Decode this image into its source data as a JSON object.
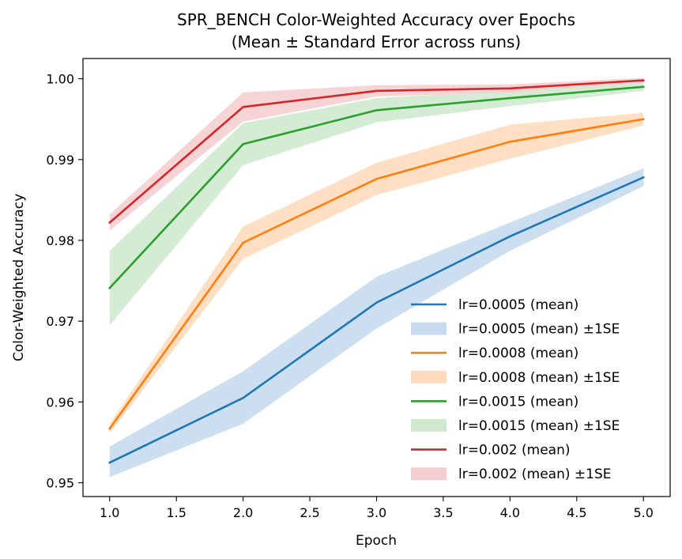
{
  "chart_data": {
    "type": "line",
    "title": "SPR_BENCH Color-Weighted Accuracy over Epochs",
    "subtitle": "(Mean ± Standard Error across runs)",
    "xlabel": "Epoch",
    "ylabel": "Color-Weighted Accuracy",
    "xlim": [
      0.8,
      5.2
    ],
    "ylim": [
      0.9483,
      1.0025
    ],
    "xticks": [
      1.0,
      1.5,
      2.0,
      2.5,
      3.0,
      3.5,
      4.0,
      4.5,
      5.0
    ],
    "xtick_labels": [
      "1.0",
      "1.5",
      "2.0",
      "2.5",
      "3.0",
      "3.5",
      "4.0",
      "4.5",
      "5.0"
    ],
    "yticks": [
      0.95,
      0.96,
      0.97,
      0.98,
      0.99,
      1.0
    ],
    "ytick_labels": [
      "0.95",
      "0.96",
      "0.97",
      "0.98",
      "0.99",
      "1.00"
    ],
    "grid": false,
    "legend_position": "lower-right",
    "x": [
      1,
      2,
      3,
      4,
      5
    ],
    "series": [
      {
        "name": "lr=0.0005 (mean)",
        "band_name": "lr=0.0005 (mean) ±1SE",
        "color": "#1f77b4",
        "band_color": "#c6dbef",
        "values": [
          0.9525,
          0.9605,
          0.9723,
          0.9805,
          0.9878
        ],
        "lower": [
          0.9507,
          0.9573,
          0.9691,
          0.9787,
          0.9867
        ],
        "upper": [
          0.9545,
          0.9638,
          0.9755,
          0.9822,
          0.9889
        ]
      },
      {
        "name": "lr=0.0008 (mean)",
        "band_name": "lr=0.0008 (mean) ±1SE",
        "color": "#ff7f0e",
        "band_color": "#ffdbbd",
        "values": [
          0.9567,
          0.9797,
          0.9876,
          0.9922,
          0.995
        ],
        "lower": [
          0.9561,
          0.9777,
          0.9856,
          0.9901,
          0.9942
        ],
        "upper": [
          0.9573,
          0.9817,
          0.9896,
          0.9943,
          0.9958
        ]
      },
      {
        "name": "lr=0.0015 (mean)",
        "band_name": "lr=0.0015 (mean) ±1SE",
        "color": "#2ca02c",
        "band_color": "#cfe9cf",
        "values": [
          0.9741,
          0.9919,
          0.9961,
          0.9976,
          0.999
        ],
        "lower": [
          0.9695,
          0.9893,
          0.9946,
          0.9966,
          0.9985
        ],
        "upper": [
          0.9787,
          0.9945,
          0.9976,
          0.9986,
          0.9995
        ]
      },
      {
        "name": "lr=0.002 (mean)",
        "band_name": "lr=0.002 (mean) ±1SE",
        "color": "#d62728",
        "band_color": "#f5cfd0",
        "values": [
          0.9822,
          0.9965,
          0.9985,
          0.9988,
          0.9998
        ],
        "lower": [
          0.9812,
          0.9947,
          0.9978,
          0.9983,
          0.9995
        ],
        "upper": [
          0.9832,
          0.9983,
          0.9992,
          0.9993,
          1.0001
        ]
      }
    ]
  }
}
